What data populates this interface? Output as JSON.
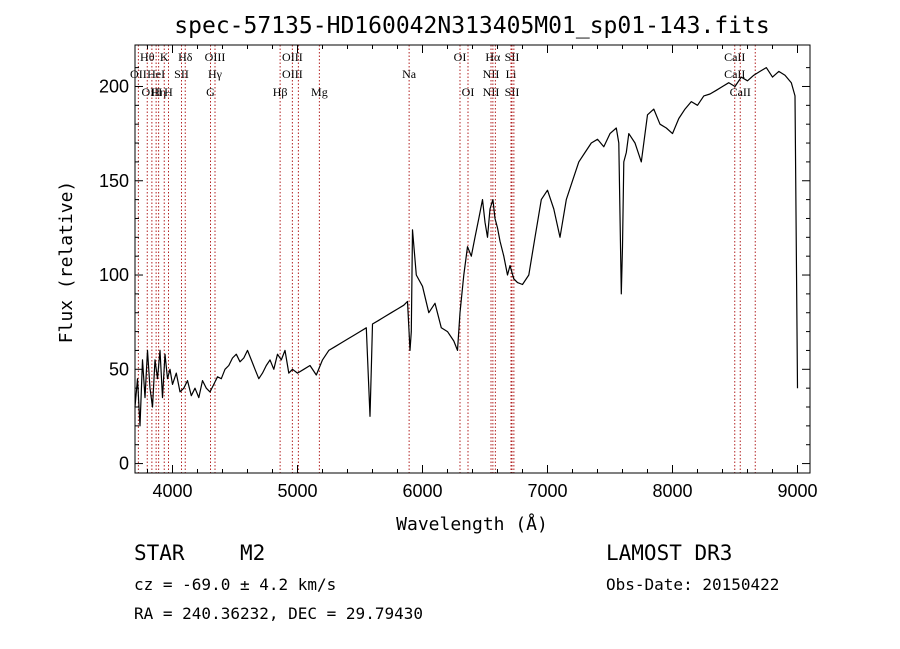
{
  "chart_data": {
    "type": "line",
    "title": "spec-57135-HD160042N313405M01_sp01-143.fits",
    "xlabel": "Wavelength (Å)",
    "ylabel": "Flux (relative)",
    "xlim": [
      3700,
      9100
    ],
    "ylim": [
      -5,
      222
    ],
    "xticks": [
      4000,
      5000,
      6000,
      7000,
      8000,
      9000
    ],
    "yticks": [
      0,
      50,
      100,
      150,
      200
    ],
    "grid": false,
    "series": [
      {
        "x": [
          3700,
          3720,
          3740,
          3760,
          3780,
          3800,
          3820,
          3840,
          3860,
          3880,
          3900,
          3920,
          3940,
          3960,
          3980,
          4000,
          4030,
          4060,
          4090,
          4120,
          4150,
          4180,
          4210,
          4240,
          4270,
          4300,
          4330,
          4360,
          4390,
          4420,
          4450,
          4480,
          4510,
          4540,
          4570,
          4600,
          4630,
          4660,
          4690,
          4720,
          4750,
          4780,
          4810,
          4840,
          4870,
          4900,
          4930,
          4960,
          5000,
          5050,
          5100,
          5150,
          5200,
          5250,
          5300,
          5350,
          5400,
          5450,
          5500,
          5550,
          5580,
          5590,
          5600,
          5650,
          5700,
          5750,
          5800,
          5850,
          5880,
          5900,
          5910,
          5920,
          5950,
          6000,
          6050,
          6100,
          6150,
          6200,
          6250,
          6280,
          6300,
          6330,
          6360,
          6390,
          6420,
          6450,
          6480,
          6500,
          6520,
          6540,
          6563,
          6580,
          6600,
          6620,
          6650,
          6680,
          6700,
          6730,
          6760,
          6800,
          6850,
          6900,
          6950,
          7000,
          7050,
          7100,
          7150,
          7200,
          7250,
          7300,
          7350,
          7400,
          7450,
          7500,
          7550,
          7570,
          7590,
          7600,
          7610,
          7630,
          7650,
          7700,
          7750,
          7800,
          7850,
          7900,
          7950,
          8000,
          8050,
          8100,
          8150,
          8200,
          8250,
          8300,
          8350,
          8400,
          8450,
          8500,
          8550,
          8600,
          8650,
          8700,
          8750,
          8800,
          8850,
          8900,
          8950,
          8980,
          9000
        ],
        "values": [
          30,
          45,
          20,
          55,
          35,
          60,
          40,
          30,
          55,
          45,
          60,
          35,
          58,
          45,
          50,
          42,
          48,
          38,
          40,
          44,
          36,
          40,
          35,
          44,
          40,
          38,
          42,
          46,
          45,
          50,
          52,
          56,
          58,
          54,
          56,
          60,
          55,
          50,
          45,
          48,
          52,
          55,
          50,
          58,
          55,
          60,
          48,
          50,
          48,
          50,
          52,
          47,
          55,
          60,
          62,
          64,
          66,
          68,
          70,
          72,
          25,
          50,
          74,
          76,
          78,
          80,
          82,
          84,
          86,
          60,
          70,
          124,
          100,
          94,
          80,
          85,
          72,
          70,
          65,
          60,
          80,
          100,
          115,
          110,
          120,
          130,
          140,
          128,
          120,
          135,
          140,
          130,
          125,
          118,
          110,
          100,
          105,
          98,
          96,
          95,
          100,
          120,
          140,
          145,
          135,
          120,
          140,
          150,
          160,
          165,
          170,
          172,
          168,
          175,
          178,
          170,
          90,
          115,
          160,
          165,
          175,
          170,
          160,
          185,
          188,
          180,
          178,
          175,
          183,
          188,
          192,
          190,
          195,
          196,
          198,
          200,
          202,
          200,
          205,
          203,
          206,
          208,
          210,
          205,
          208,
          206,
          202,
          195,
          40
        ],
        "color": "#000000"
      }
    ],
    "line_markers": [
      {
        "wavelength": 3727,
        "labels": [
          "OII"
        ],
        "row": [
          1
        ]
      },
      {
        "wavelength": 3798,
        "labels": [
          "Hθ"
        ],
        "row": [
          0
        ]
      },
      {
        "wavelength": 3835,
        "labels": [
          "OIII"
        ],
        "row": [
          2
        ]
      },
      {
        "wavelength": 3869,
        "labels": [
          "HeI"
        ],
        "row": [
          1
        ]
      },
      {
        "wavelength": 3889,
        "labels": [
          "Hη"
        ],
        "row": [
          2
        ]
      },
      {
        "wavelength": 3934,
        "labels": [
          "K"
        ],
        "row": [
          0
        ]
      },
      {
        "wavelength": 3968,
        "labels": [
          "H"
        ],
        "row": [
          2
        ]
      },
      {
        "wavelength": 4072,
        "labels": [
          "SII"
        ],
        "row": [
          1
        ]
      },
      {
        "wavelength": 4102,
        "labels": [
          "Hδ"
        ],
        "row": [
          0
        ]
      },
      {
        "wavelength": 4304,
        "labels": [
          "G"
        ],
        "row": [
          2
        ]
      },
      {
        "wavelength": 4340,
        "labels": [
          "OIII",
          "Hγ"
        ],
        "row": [
          0,
          1
        ]
      },
      {
        "wavelength": 4861,
        "labels": [
          "Hβ"
        ],
        "row": [
          2
        ]
      },
      {
        "wavelength": 4959,
        "labels": [
          "OIII",
          "OIII"
        ],
        "row": [
          0,
          1
        ]
      },
      {
        "wavelength": 5007,
        "labels": [],
        "row": []
      },
      {
        "wavelength": 5175,
        "labels": [
          "Mg"
        ],
        "row": [
          2
        ]
      },
      {
        "wavelength": 5893,
        "labels": [
          "Na"
        ],
        "row": [
          1
        ]
      },
      {
        "wavelength": 6300,
        "labels": [
          "OI"
        ],
        "row": [
          0
        ]
      },
      {
        "wavelength": 6364,
        "labels": [
          "OI"
        ],
        "row": [
          2
        ]
      },
      {
        "wavelength": 6548,
        "labels": [
          "NII",
          "NII"
        ],
        "row": [
          1,
          2
        ]
      },
      {
        "wavelength": 6563,
        "labels": [
          "Hα"
        ],
        "row": [
          0
        ]
      },
      {
        "wavelength": 6583,
        "labels": [],
        "row": []
      },
      {
        "wavelength": 6708,
        "labels": [
          "Li"
        ],
        "row": [
          1
        ]
      },
      {
        "wavelength": 6716,
        "labels": [
          "SII",
          "SII"
        ],
        "row": [
          0,
          2
        ]
      },
      {
        "wavelength": 6731,
        "labels": [],
        "row": []
      },
      {
        "wavelength": 8498,
        "labels": [
          "CaII",
          "CaII"
        ],
        "row": [
          0,
          1
        ]
      },
      {
        "wavelength": 8542,
        "labels": [
          "CaII"
        ],
        "row": [
          2
        ]
      },
      {
        "wavelength": 8662,
        "labels": [],
        "row": []
      }
    ],
    "marker_color": "#b22222"
  },
  "info": {
    "object_class": "STAR",
    "subclass": "M2",
    "survey": "LAMOST DR3",
    "cz": "cz = -69.0 ± 4.2 km/s",
    "obs_date": "Obs-Date: 20150422",
    "coords": "RA = 240.36232, DEC =  29.79430"
  }
}
